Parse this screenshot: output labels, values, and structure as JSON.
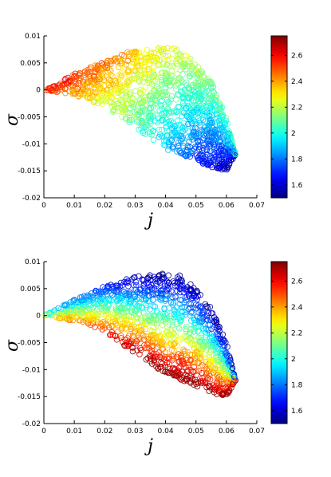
{
  "chart_data": [
    {
      "type": "scatter",
      "xlabel": "j",
      "ylabel": "σ",
      "xlim": [
        0,
        0.07
      ],
      "ylim": [
        -0.02,
        0.01
      ],
      "xticks": [
        "0",
        "0.01",
        "0.02",
        "0.03",
        "0.04",
        "0.05",
        "0.06",
        "0.07"
      ],
      "yticks": [
        "0.01",
        "0.005",
        "0",
        "-0.005",
        "-0.01",
        "-0.015",
        "-0.02"
      ],
      "colorbar": {
        "colormap": "jet",
        "range": [
          1.5,
          2.75
        ],
        "ticks": [
          "2.6",
          "2.4",
          "2.2",
          "2",
          "1.8",
          "1.6"
        ]
      },
      "marker": "open-circle",
      "color_mapping": "high values near the upper/left boundary and origin, low values near the lower-right boundary",
      "region": {
        "upper_boundary": [
          [
            0,
            0
          ],
          [
            0.01,
            0.003
          ],
          [
            0.02,
            0.0055
          ],
          [
            0.03,
            0.0075
          ],
          [
            0.04,
            0.008
          ],
          [
            0.045,
            0.0075
          ],
          [
            0.05,
            0.005
          ],
          [
            0.055,
            0.0015
          ],
          [
            0.06,
            -0.005
          ],
          [
            0.063,
            -0.012
          ]
        ],
        "lower_boundary": [
          [
            0,
            0
          ],
          [
            0.01,
            -0.001
          ],
          [
            0.02,
            -0.003
          ],
          [
            0.03,
            -0.007
          ],
          [
            0.04,
            -0.011
          ],
          [
            0.05,
            -0.013
          ],
          [
            0.055,
            -0.0145
          ],
          [
            0.06,
            -0.015
          ],
          [
            0.063,
            -0.012
          ]
        ]
      }
    },
    {
      "type": "scatter",
      "xlabel": "j",
      "ylabel": "σ",
      "xlim": [
        0,
        0.07
      ],
      "ylim": [
        -0.02,
        0.01
      ],
      "xticks": [
        "0",
        "0.01",
        "0.02",
        "0.03",
        "0.04",
        "0.05",
        "0.06",
        "0.07"
      ],
      "yticks": [
        "0.01",
        "0.005",
        "0",
        "-0.005",
        "-0.01",
        "-0.015",
        "-0.02"
      ],
      "colorbar": {
        "colormap": "jet",
        "range": [
          1.5,
          2.75
        ],
        "ticks": [
          "2.6",
          "2.4",
          "2.2",
          "2",
          "1.8",
          "1.6"
        ]
      },
      "marker": "open-circle",
      "color_mapping": "low values along the upper boundary, high values along the lower boundary",
      "region": {
        "upper_boundary": [
          [
            0,
            0
          ],
          [
            0.01,
            0.003
          ],
          [
            0.02,
            0.0055
          ],
          [
            0.03,
            0.0075
          ],
          [
            0.04,
            0.008
          ],
          [
            0.045,
            0.0075
          ],
          [
            0.05,
            0.005
          ],
          [
            0.055,
            0.0015
          ],
          [
            0.06,
            -0.005
          ],
          [
            0.063,
            -0.012
          ]
        ],
        "lower_boundary": [
          [
            0,
            0
          ],
          [
            0.01,
            -0.001
          ],
          [
            0.02,
            -0.003
          ],
          [
            0.03,
            -0.007
          ],
          [
            0.04,
            -0.011
          ],
          [
            0.05,
            -0.013
          ],
          [
            0.055,
            -0.0145
          ],
          [
            0.06,
            -0.015
          ],
          [
            0.063,
            -0.012
          ]
        ]
      }
    }
  ]
}
